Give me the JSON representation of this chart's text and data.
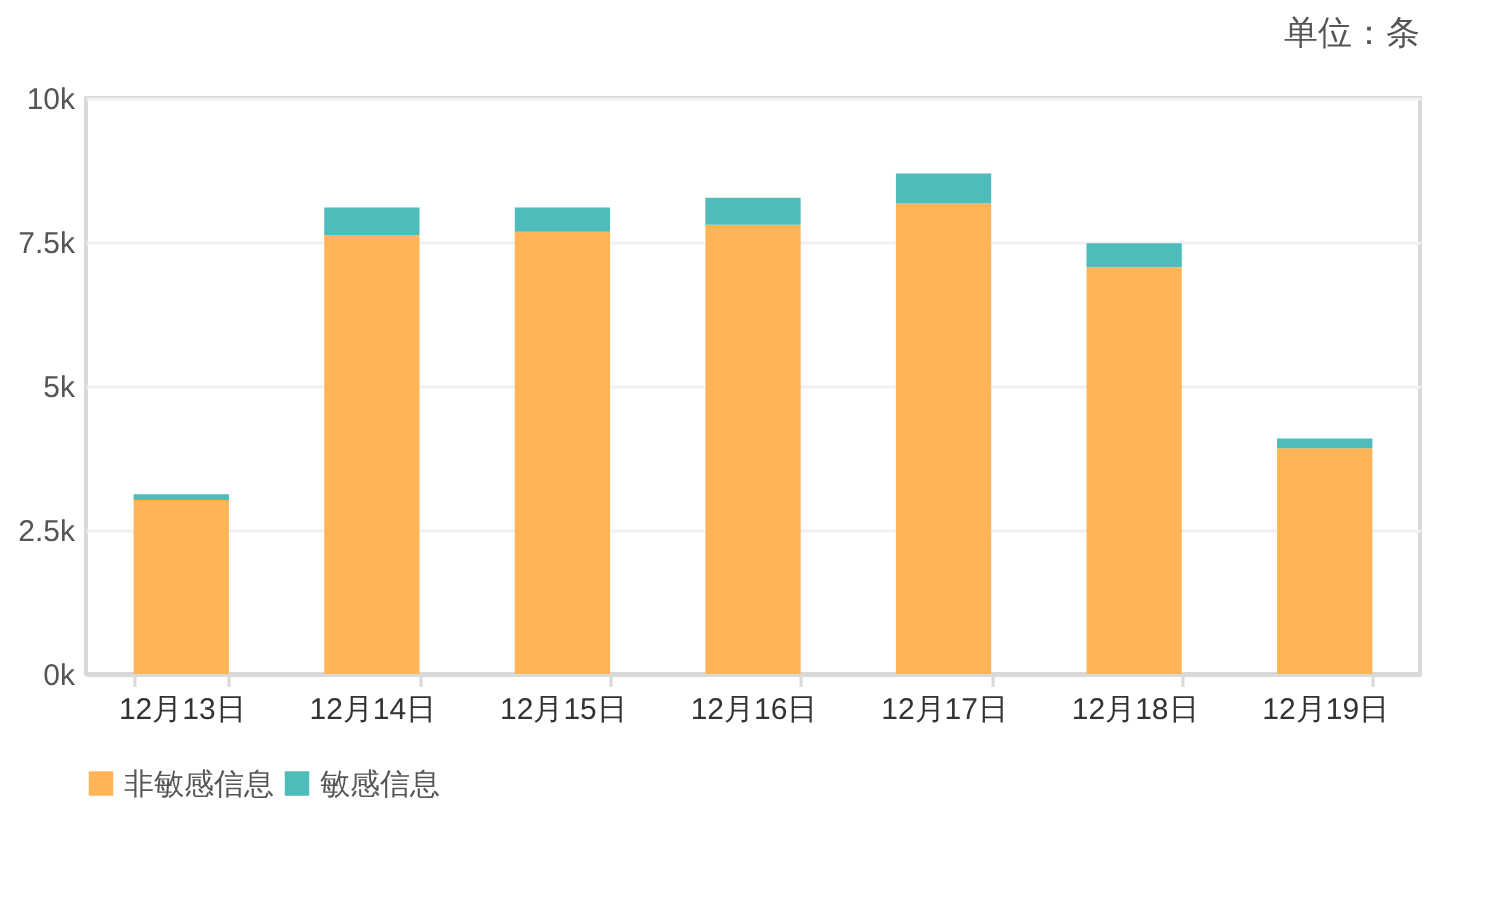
{
  "chart_data": {
    "type": "bar",
    "stacked": true,
    "annotations": [
      "单位：条"
    ],
    "categories": [
      "12月13日",
      "12月14日",
      "12月15日",
      "12月16日",
      "12月17日",
      "12月18日",
      "12月19日"
    ],
    "series": [
      {
        "name": "非敏感信息",
        "color": "#ffb557",
        "values": [
          3020,
          7620,
          7680,
          7800,
          8170,
          7060,
          3920
        ]
      },
      {
        "name": "敏感信息",
        "color": "#4ebcbb",
        "values": [
          100,
          480,
          420,
          470,
          520,
          420,
          170
        ]
      }
    ],
    "ylim": [
      0,
      10000
    ],
    "yticks": [
      {
        "value": 0,
        "label": "0k"
      },
      {
        "value": 2500,
        "label": "2.5k"
      },
      {
        "value": 5000,
        "label": "5k"
      },
      {
        "value": 7500,
        "label": "7.5k"
      },
      {
        "value": 10000,
        "label": "10k"
      }
    ],
    "grid": "y",
    "legend": "bottom"
  }
}
